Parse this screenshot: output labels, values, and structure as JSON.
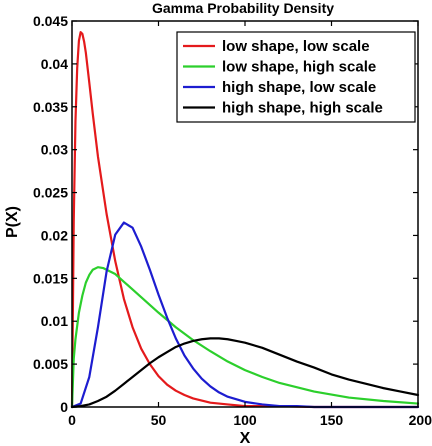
{
  "chart_data": {
    "type": "line",
    "title": "Gamma Probability Density",
    "xlabel": "X",
    "ylabel": "P(X)",
    "xlim": [
      0,
      200
    ],
    "ylim": [
      0,
      0.045
    ],
    "x_ticks": [
      0,
      50,
      100,
      150,
      200
    ],
    "x_tick_labels": [
      "0",
      "50",
      "100",
      "150",
      "200"
    ],
    "y_ticks": [
      0,
      0.005,
      0.01,
      0.015,
      0.02,
      0.025,
      0.03,
      0.035,
      0.04,
      0.045
    ],
    "y_tick_labels": [
      "0",
      "0.005",
      "0.01",
      "0.015",
      "0.02",
      "0.025",
      "0.03",
      "0.035",
      "0.04",
      "0.045"
    ],
    "grid": false,
    "legend_position": "top-right",
    "series": [
      {
        "name": "low shape, low scale",
        "color": "#e41a1c",
        "x": [
          0,
          1,
          2,
          3,
          4,
          5,
          6,
          7,
          8,
          10,
          12,
          15,
          20,
          25,
          30,
          35,
          40,
          45,
          50,
          55,
          60,
          65,
          70,
          80,
          90,
          100,
          110,
          120,
          140,
          160,
          180,
          200
        ],
        "y": [
          0,
          0.0216,
          0.0333,
          0.0395,
          0.0427,
          0.0437,
          0.0435,
          0.0426,
          0.0413,
          0.0378,
          0.0342,
          0.0292,
          0.0225,
          0.017,
          0.0126,
          0.0093,
          0.0068,
          0.005,
          0.0036,
          0.0026,
          0.0019,
          0.0014,
          0.001,
          0.0005,
          0.0003,
          0.0001,
          0.0001,
          0.0001,
          0,
          0,
          0,
          0
        ]
      },
      {
        "name": "low shape, high scale",
        "color": "#2ccf2c",
        "x": [
          0,
          1,
          2,
          4,
          6,
          8,
          10,
          12,
          15,
          18,
          20,
          25,
          30,
          35,
          40,
          50,
          60,
          70,
          80,
          90,
          100,
          110,
          120,
          140,
          160,
          180,
          200
        ],
        "y": [
          0,
          0.0056,
          0.0079,
          0.011,
          0.013,
          0.0145,
          0.0154,
          0.016,
          0.0163,
          0.0162,
          0.016,
          0.0155,
          0.0146,
          0.0137,
          0.0128,
          0.011,
          0.0093,
          0.0078,
          0.0065,
          0.0053,
          0.0043,
          0.0035,
          0.0028,
          0.0018,
          0.0011,
          0.0007,
          0.0004
        ]
      },
      {
        "name": "high shape, low scale",
        "color": "#1d1dd0",
        "x": [
          0,
          5,
          10,
          15,
          20,
          25,
          30,
          35,
          40,
          45,
          50,
          55,
          60,
          65,
          70,
          75,
          80,
          85,
          90,
          100,
          110,
          120,
          130,
          140,
          150,
          160,
          180,
          200
        ],
        "y": [
          0,
          0.0004,
          0.0035,
          0.0093,
          0.0158,
          0.0201,
          0.0215,
          0.0209,
          0.0187,
          0.016,
          0.0131,
          0.0104,
          0.008,
          0.006,
          0.0045,
          0.0033,
          0.0024,
          0.0017,
          0.0012,
          0.0006,
          0.0003,
          0.0001,
          0.0001,
          0,
          0,
          0,
          0,
          0
        ]
      },
      {
        "name": "high shape, high scale",
        "color": "#000000",
        "x": [
          0,
          5,
          10,
          15,
          20,
          25,
          30,
          35,
          40,
          45,
          50,
          55,
          60,
          65,
          70,
          75,
          80,
          85,
          90,
          95,
          100,
          110,
          120,
          130,
          140,
          150,
          160,
          170,
          180,
          190,
          200
        ],
        "y": [
          0,
          0.0001,
          0.0003,
          0.0007,
          0.0012,
          0.0019,
          0.0027,
          0.0035,
          0.0043,
          0.0051,
          0.0058,
          0.0064,
          0.007,
          0.0074,
          0.0077,
          0.0079,
          0.008,
          0.008,
          0.0079,
          0.0077,
          0.0075,
          0.0069,
          0.0061,
          0.0053,
          0.0046,
          0.0038,
          0.0032,
          0.0027,
          0.0022,
          0.0018,
          0.0014
        ]
      }
    ]
  }
}
